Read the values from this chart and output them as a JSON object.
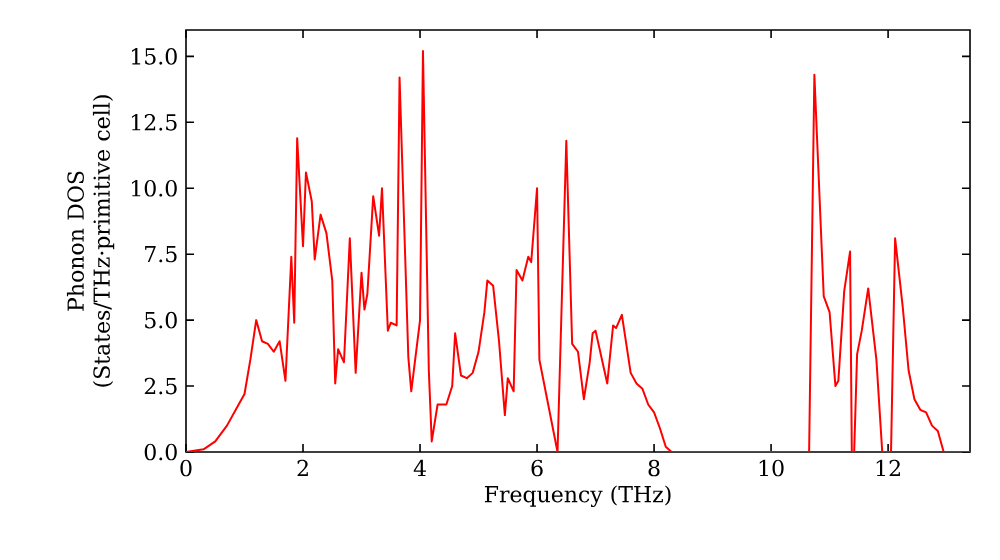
{
  "chart_data": {
    "type": "line",
    "xlabel": "Frequency (THz)",
    "ylabel": "Phonon DOS (States/THz·primitive cell)",
    "xlim": [
      0,
      13.4
    ],
    "ylim": [
      0,
      16
    ],
    "xticks": [
      0,
      2,
      4,
      6,
      8,
      10,
      12
    ],
    "yticks": [
      {
        "value": 0,
        "label": "0.0"
      },
      {
        "value": 2.5,
        "label": "2.5"
      },
      {
        "value": 5,
        "label": "5.0"
      },
      {
        "value": 7.5,
        "label": "7.5"
      },
      {
        "value": 10,
        "label": "10.0"
      },
      {
        "value": 12.5,
        "label": "12.5"
      },
      {
        "value": 15,
        "label": "15.0"
      }
    ],
    "marker": "none",
    "line_style": "solid",
    "series": [
      {
        "color": "#ff0000",
        "x": [
          0,
          0.3,
          0.5,
          0.7,
          0.9,
          1.0,
          1.1,
          1.2,
          1.3,
          1.4,
          1.5,
          1.6,
          1.7,
          1.8,
          1.85,
          1.9,
          2.0,
          2.05,
          2.15,
          2.2,
          2.3,
          2.4,
          2.5,
          2.55,
          2.6,
          2.7,
          2.8,
          2.9,
          3.0,
          3.05,
          3.1,
          3.2,
          3.3,
          3.35,
          3.45,
          3.5,
          3.6,
          3.65,
          3.8,
          3.85,
          4.0,
          4.05,
          4.15,
          4.2,
          4.3,
          4.45,
          4.55,
          4.6,
          4.7,
          4.8,
          4.9,
          5.0,
          5.1,
          5.15,
          5.25,
          5.35,
          5.45,
          5.5,
          5.6,
          5.65,
          5.75,
          5.85,
          5.9,
          6.0,
          6.04,
          6.35,
          6.5,
          6.6,
          6.7,
          6.8,
          6.9,
          6.95,
          7.0,
          7.1,
          7.2,
          7.3,
          7.35,
          7.45,
          7.6,
          7.7,
          7.8,
          7.9,
          8.0,
          8.1,
          8.2,
          8.3,
          10.65,
          10.74,
          10.9,
          11.0,
          11.1,
          11.15,
          11.25,
          11.35,
          11.38,
          11.42,
          11.47,
          11.55,
          11.66,
          11.8,
          11.9,
          12.05,
          12.12,
          12.25,
          12.35,
          12.45,
          12.55,
          12.65,
          12.75,
          12.85,
          12.95,
          13.4
        ],
        "values": [
          0,
          0.1,
          0.4,
          1.0,
          1.8,
          2.2,
          3.5,
          5.0,
          4.2,
          4.1,
          3.8,
          4.2,
          2.7,
          7.4,
          4.9,
          11.9,
          7.8,
          10.6,
          9.5,
          7.3,
          9.0,
          8.3,
          6.5,
          2.6,
          3.9,
          3.4,
          8.1,
          3.0,
          6.8,
          5.4,
          6.0,
          9.7,
          8.2,
          10.0,
          4.6,
          4.9,
          4.8,
          14.2,
          3.6,
          2.3,
          5.0,
          15.2,
          3.1,
          0.4,
          1.8,
          1.8,
          2.5,
          4.5,
          2.9,
          2.8,
          3.0,
          3.8,
          5.3,
          6.5,
          6.3,
          4.2,
          1.4,
          2.8,
          2.3,
          6.9,
          6.5,
          7.4,
          7.2,
          10.0,
          3.5,
          0,
          11.8,
          4.1,
          3.8,
          2.0,
          3.4,
          4.5,
          4.6,
          3.6,
          2.6,
          4.8,
          4.7,
          5.2,
          3.0,
          2.6,
          2.4,
          1.8,
          1.5,
          0.9,
          0.2,
          0,
          0,
          14.3,
          5.9,
          5.3,
          2.5,
          2.7,
          6.1,
          7.6,
          0,
          0,
          3.7,
          4.6,
          6.2,
          3.5,
          0,
          0,
          8.1,
          5.5,
          3.1,
          2.0,
          1.6,
          1.5,
          1.0,
          0.8,
          0,
          0
        ]
      }
    ]
  }
}
